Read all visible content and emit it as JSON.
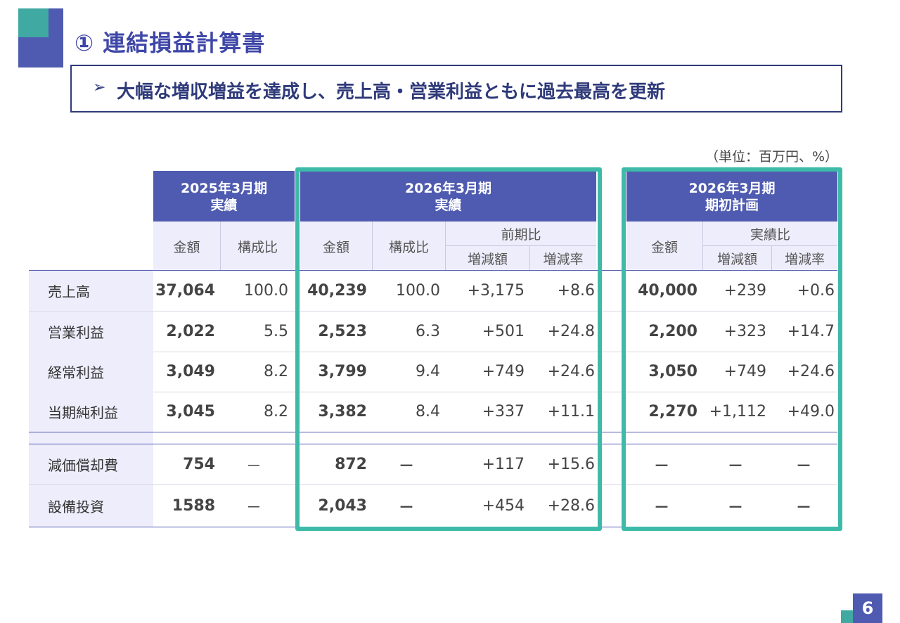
{
  "title": "① 連結損益計算書",
  "subtitle": {
    "arrow": "➢",
    "text": "大幅な増収増益を達成し、売上高・営業利益ともに過去最高を更新"
  },
  "unit": "（単位：百万円、%）",
  "groups": {
    "fy2025": {
      "line1": "2025年3月期",
      "line2": "実績"
    },
    "fy2026": {
      "line1": "2026年3月期",
      "line2": "実績"
    },
    "plan": {
      "line1": "2026年3月期",
      "line2": "期初計画"
    }
  },
  "subheaders": {
    "amount": "金額",
    "ratio": "構成比",
    "yoy": "前期比",
    "vs_plan": "実績比",
    "change": "増減額",
    "rate": "増減率"
  },
  "rows": [
    {
      "label": "売上高",
      "a2025": "37,064",
      "r2025": "100.0",
      "a2026": "40,239",
      "r2026": "100.0",
      "chg": "+3,175",
      "rate": "+8.6",
      "plan": "40,000",
      "pchg": "+239",
      "prate": "+0.6"
    },
    {
      "label": "営業利益",
      "a2025": "2,022",
      "r2025": "5.5",
      "a2026": "2,523",
      "r2026": "6.3",
      "chg": "+501",
      "rate": "+24.8",
      "plan": "2,200",
      "pchg": "+323",
      "prate": "+14.7"
    },
    {
      "label": "経常利益",
      "a2025": "3,049",
      "r2025": "8.2",
      "a2026": "3,799",
      "r2026": "9.4",
      "chg": "+749",
      "rate": "+24.6",
      "plan": "3,050",
      "pchg": "+749",
      "prate": "+24.6"
    },
    {
      "label": "当期純利益",
      "a2025": "3,045",
      "r2025": "8.2",
      "a2026": "3,382",
      "r2026": "8.4",
      "chg": "+337",
      "rate": "+11.1",
      "plan": "2,270",
      "pchg": "+1,112",
      "prate": "+49.0"
    },
    {
      "label": "減価償却費",
      "a2025": "754",
      "r2025": "－",
      "a2026": "872",
      "r2026": "－",
      "chg": "+117",
      "rate": "+15.6",
      "plan": "－",
      "pchg": "－",
      "prate": "－"
    },
    {
      "label": "設備投資",
      "a2025": "1588",
      "r2025": "－",
      "a2026": "2,043",
      "r2026": "－",
      "chg": "+454",
      "rate": "+28.6",
      "plan": "－",
      "pchg": "－",
      "prate": "－"
    }
  ],
  "page_number": "6",
  "colors": {
    "header": "#4f5bb0",
    "accent_frame": "#3dbba8",
    "subheader_bg": "#eeedfb",
    "title": "#3f47a8"
  }
}
